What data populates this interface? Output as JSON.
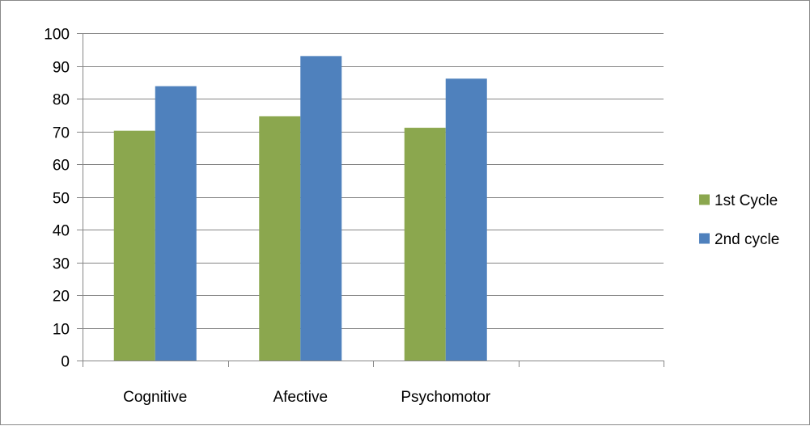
{
  "chart_data": {
    "type": "bar",
    "categories": [
      "Cognitive",
      "Afective",
      "Psychomotor",
      ""
    ],
    "series": [
      {
        "name": "1st Cycle",
        "color": "#8ba74e",
        "values": [
          70.2,
          74.6,
          71.1,
          null
        ]
      },
      {
        "name": "2nd cycle",
        "color": "#4f81bd",
        "values": [
          83.8,
          93.0,
          86.1,
          null
        ]
      }
    ],
    "ylim": [
      0,
      100
    ],
    "yticks": [
      0,
      10,
      20,
      30,
      40,
      50,
      60,
      70,
      80,
      90,
      100
    ],
    "grid": true,
    "legend_position": "right"
  }
}
